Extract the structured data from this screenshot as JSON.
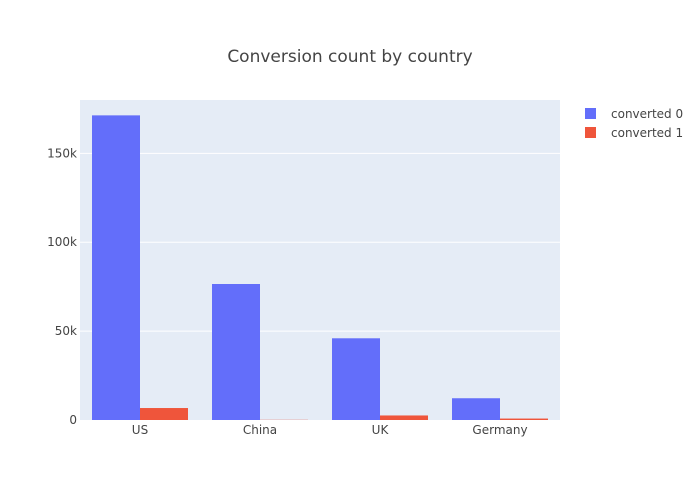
{
  "chart_data": {
    "type": "bar",
    "title": "Conversion count by country",
    "categories": [
      "US",
      "China",
      "UK",
      "Germany"
    ],
    "series": [
      {
        "name": "converted 0",
        "color": "#636efa",
        "values": [
          171360,
          76500,
          45966,
          12240
        ]
      },
      {
        "name": "converted 1",
        "color": "#ef553b",
        "values": [
          6732,
          102,
          2550,
          816
        ]
      }
    ],
    "ylim": [
      0,
      180000
    ],
    "yticks": [
      {
        "value": 0,
        "label": "0"
      },
      {
        "value": 50000,
        "label": "50k"
      },
      {
        "value": 100000,
        "label": "100k"
      },
      {
        "value": 150000,
        "label": "150k"
      }
    ],
    "xlabel": "",
    "ylabel": "",
    "grid": true,
    "legend_position": "top-right",
    "plot_background": "#e5ecf6"
  }
}
